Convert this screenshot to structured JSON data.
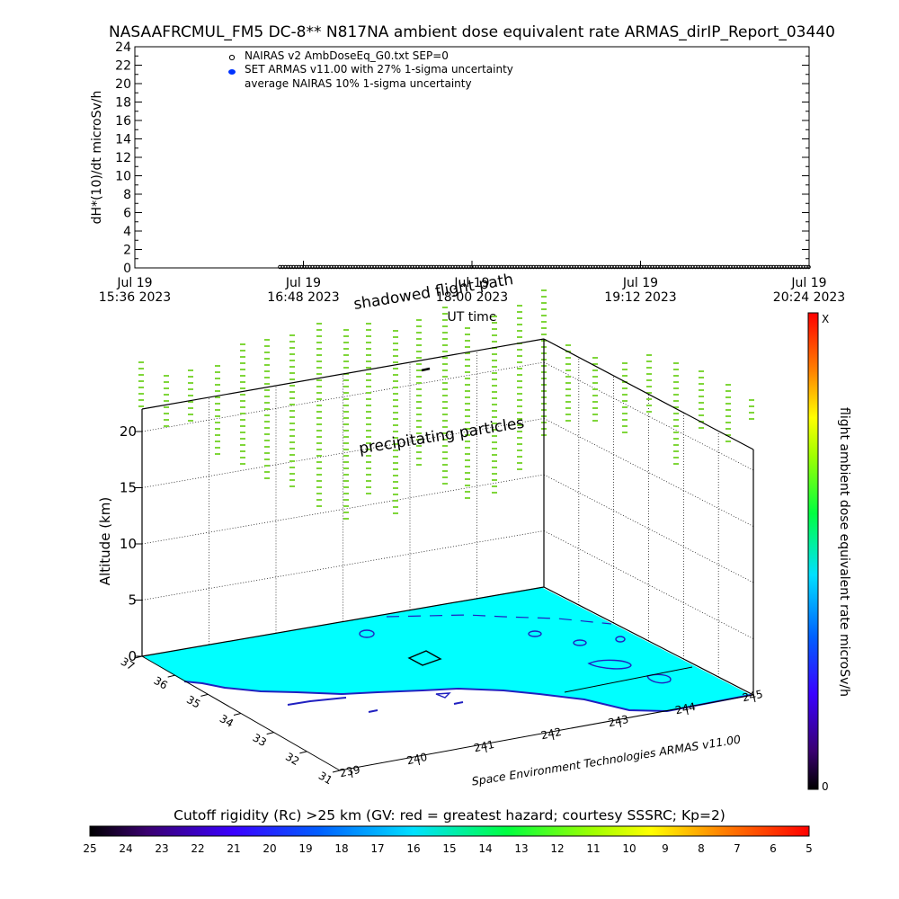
{
  "title": "NASAAFRCMUL_FM5 DC-8** N817NA ambient dose equivalent rate ARMAS_dirIP_Report_03440",
  "colors": {
    "dose_cyan": "#00ffff",
    "contour": "#2020c0",
    "curtain": "#7fd63a",
    "armas_marker": "#0033ff"
  },
  "chart_data": [
    {
      "type": "scatter",
      "ylabel": "dH*(10)/dt microSv/h",
      "xlabel": "UT time",
      "ylim": [
        0,
        24
      ],
      "yticks": [
        "0",
        "2",
        "4",
        "6",
        "8",
        "10",
        "12",
        "14",
        "16",
        "18",
        "20",
        "22",
        "24"
      ],
      "xticks": [
        {
          "date": "Jul 19",
          "time": "15:36 2023"
        },
        {
          "date": "Jul 19",
          "time": "16:48 2023"
        },
        {
          "date": "Jul 19",
          "time": "18:00 2023"
        },
        {
          "date": "Jul 19",
          "time": "19:12 2023"
        },
        {
          "date": "Jul 19",
          "time": "20:24 2023"
        }
      ],
      "xrange_minutes": [
        0,
        288
      ],
      "legend": [
        "NAIRAS v2 AmbDoseEq_G0.txt SEP=0",
        "SET ARMAS v11.00 with 27% 1-sigma uncertainty",
        "average NAIRAS 10% 1-sigma uncertainty"
      ],
      "legend_position": "top-left",
      "series": [
        {
          "start_minute": 62,
          "end_minute": 288,
          "value": 0
        }
      ]
    },
    {
      "type": "3d-surface",
      "zlabel": "Altitude (km)",
      "zticks": [
        "0",
        "5",
        "10",
        "15",
        "20"
      ],
      "zlim": [
        0,
        22
      ],
      "latitude_ticks": [
        "31",
        "32",
        "33",
        "34",
        "35",
        "36",
        "37"
      ],
      "longitude_ticks": [
        "239",
        "240",
        "241",
        "242",
        "243",
        "244",
        "245"
      ],
      "annotations": [
        "shadowed flight path",
        "precipitating particles"
      ],
      "credit": "Space Environment Technologies ARMAS v11.00",
      "colorbar_label": "flight ambient dose equivalent rate microSv/h",
      "colorbar_top": "X",
      "colorbar_bottom": "0"
    },
    {
      "type": "colorbar",
      "title": "Cutoff rigidity (Rc) >25 km (GV: red = greatest hazard; courtesy SSSRC; Kp=2)",
      "ticks": [
        "25",
        "24",
        "23",
        "22",
        "21",
        "20",
        "19",
        "18",
        "17",
        "16",
        "15",
        "14",
        "13",
        "12",
        "11",
        "10",
        "9",
        "8",
        "7",
        "6",
        "5"
      ]
    }
  ]
}
